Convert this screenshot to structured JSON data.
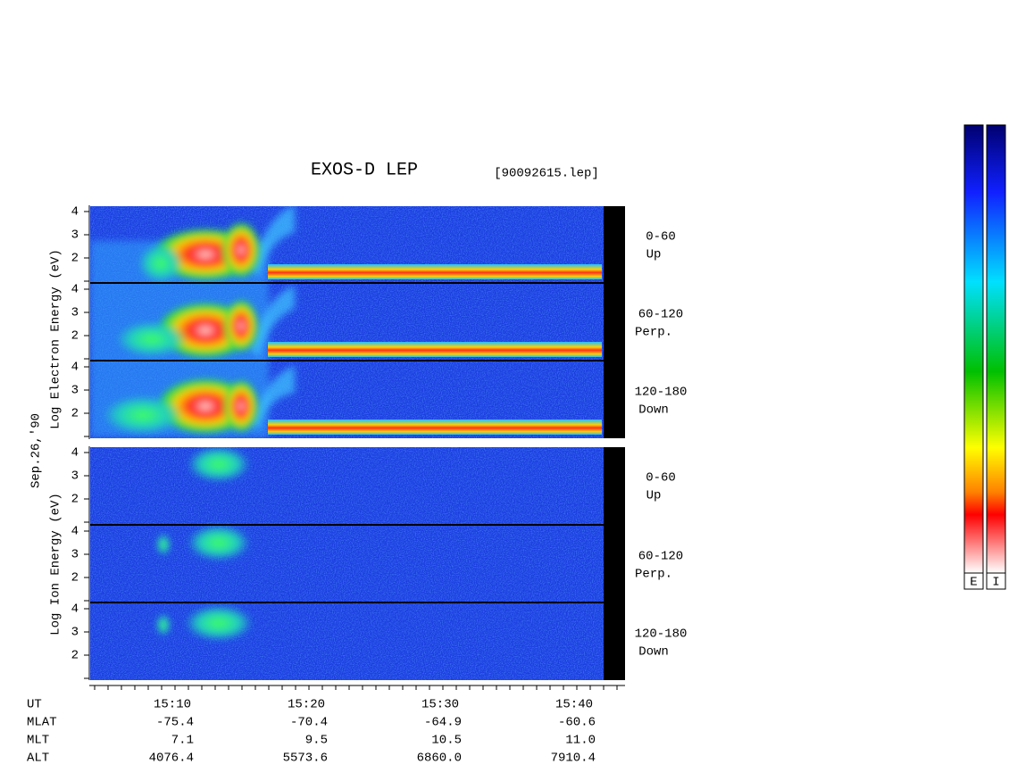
{
  "header": {
    "title": "EXOS-D LEP",
    "file": "[90092615.lep]"
  },
  "side_labels": {
    "electron": "Log  Electron  Energy  (eV)",
    "date": "Sep.26,'90",
    "ion": "Log  Ion  Energy  (eV)"
  },
  "yticks": [
    "4",
    "3",
    "2"
  ],
  "panels": [
    {
      "angle": "0-60",
      "dir": "Up"
    },
    {
      "angle": "60-120",
      "dir": "Perp."
    },
    {
      "angle": "120-180",
      "dir": "Down"
    },
    {
      "angle": "0-60",
      "dir": "Up"
    },
    {
      "angle": "60-120",
      "dir": "Perp."
    },
    {
      "angle": "120-180",
      "dir": "Down"
    }
  ],
  "table": {
    "row_labels": [
      "UT",
      "MLAT",
      "MLT",
      "ALT"
    ],
    "rows": [
      [
        "15:10",
        "15:20",
        "15:30",
        "15:40"
      ],
      [
        "-75.4",
        "-70.4",
        "-64.9",
        "-60.6"
      ],
      [
        "7.1",
        "9.5",
        "10.5",
        "11.0"
      ],
      [
        "4076.4",
        "5573.6",
        "6860.0",
        "7910.4"
      ]
    ]
  },
  "colorbars": [
    "E",
    "I"
  ]
}
